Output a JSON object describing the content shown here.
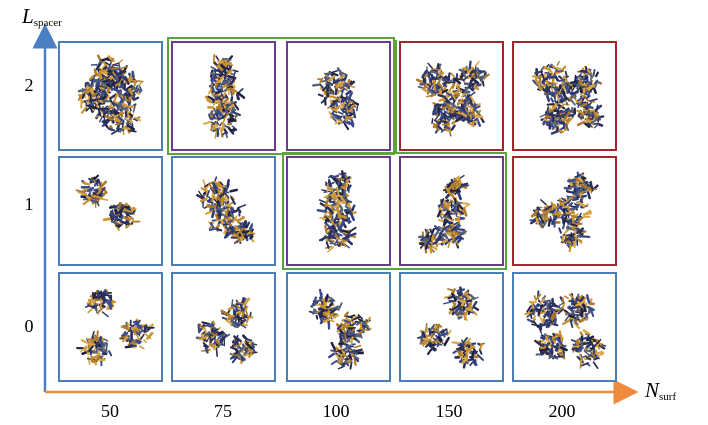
{
  "axes": {
    "y_label_main": "L",
    "y_label_sub": "spacer",
    "x_label_main": "N",
    "x_label_sub": "surf",
    "x_ticks": [
      "50",
      "75",
      "100",
      "150",
      "200"
    ],
    "y_ticks": [
      "2",
      "1",
      "0"
    ]
  },
  "colors": {
    "y_axis": "#4a7fc1",
    "x_axis": "#f08a3c",
    "frame_blue": "#4a7eb5",
    "frame_purple": "#6a3a8c",
    "frame_red": "#a4262c",
    "group_green": "#5aa53a"
  },
  "grid": {
    "rows": [
      {
        "l_spacer": "2",
        "cells": [
          {
            "n_surf": "50",
            "frame": "blue",
            "morphology": "branched aggregate"
          },
          {
            "n_surf": "75",
            "frame": "purple",
            "morphology": "elongated rod"
          },
          {
            "n_surf": "100",
            "frame": "purple",
            "morphology": "elongated rod"
          },
          {
            "n_surf": "150",
            "frame": "red",
            "morphology": "branched network"
          },
          {
            "n_surf": "200",
            "frame": "red",
            "morphology": "branched network"
          }
        ]
      },
      {
        "l_spacer": "1",
        "cells": [
          {
            "n_surf": "50",
            "frame": "blue",
            "morphology": "two small micelles"
          },
          {
            "n_surf": "75",
            "frame": "blue",
            "morphology": "merged cluster"
          },
          {
            "n_surf": "100",
            "frame": "purple",
            "morphology": "elongated rod"
          },
          {
            "n_surf": "150",
            "frame": "purple",
            "morphology": "elongated rod"
          },
          {
            "n_surf": "200",
            "frame": "red",
            "morphology": "branched network"
          }
        ]
      },
      {
        "l_spacer": "0",
        "cells": [
          {
            "n_surf": "50",
            "frame": "blue",
            "morphology": "three spherical micelles"
          },
          {
            "n_surf": "75",
            "frame": "blue",
            "morphology": "three spherical micelles"
          },
          {
            "n_surf": "100",
            "frame": "blue",
            "morphology": "three spherical micelles"
          },
          {
            "n_surf": "150",
            "frame": "blue",
            "morphology": "three spherical micelles"
          },
          {
            "n_surf": "200",
            "frame": "blue",
            "morphology": "four spherical micelles"
          }
        ]
      }
    ]
  }
}
